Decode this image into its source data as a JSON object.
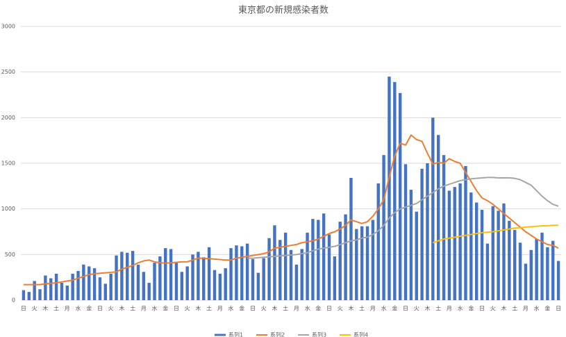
{
  "chart_data": {
    "type": "bar",
    "title": "東京都の新規感染者数",
    "categories": [
      "日",
      null,
      "火",
      null,
      "木",
      null,
      "土",
      null,
      "月",
      null,
      "水",
      null,
      "金",
      null,
      "日",
      null,
      "火",
      null,
      "木",
      null,
      "土",
      null,
      "月",
      null,
      "水",
      null,
      "金",
      null,
      "日",
      null,
      "火",
      null,
      "木",
      null,
      "土",
      null,
      "月",
      null,
      "水",
      null,
      "金",
      null,
      "日",
      null,
      "火",
      null,
      "木",
      null,
      "土",
      null,
      "月",
      null,
      "水",
      null,
      "金",
      null,
      "日",
      null,
      "火",
      null,
      "木",
      null,
      "土",
      null,
      "月",
      null,
      "水",
      null,
      "金",
      null,
      "日",
      null,
      "火",
      null,
      "木",
      null,
      "土",
      null,
      "月",
      null,
      "水",
      null,
      "金",
      null,
      "日",
      null,
      "火",
      null,
      "木",
      null,
      "土",
      null,
      "月",
      null,
      "水",
      null,
      "金",
      null,
      "日"
    ],
    "ylim": [
      0,
      3000
    ],
    "yticks": [
      0,
      500,
      1000,
      1500,
      2000,
      2500,
      3000
    ],
    "grid": true,
    "legend": "bottom",
    "series": [
      {
        "name": "系列1",
        "type": "bar",
        "color": "#4472c4",
        "values": [
          110,
          90,
          210,
          120,
          270,
          240,
          290,
          190,
          160,
          290,
          320,
          390,
          370,
          350,
          250,
          180,
          290,
          490,
          530,
          520,
          540,
          390,
          310,
          190,
          410,
          480,
          570,
          560,
          420,
          310,
          370,
          500,
          530,
          470,
          580,
          330,
          290,
          350,
          570,
          600,
          590,
          620,
          450,
          300,
          460,
          680,
          820,
          660,
          740,
          550,
          390,
          560,
          740,
          890,
          880,
          950,
          720,
          480,
          860,
          940,
          1340,
          780,
          810,
          810,
          880,
          1280,
          1590,
          2450,
          2390,
          2270,
          1490,
          1210,
          970,
          1440,
          1500,
          2000,
          1810,
          1590,
          1200,
          1240,
          1280,
          1470,
          1180,
          1070,
          990,
          620,
          1030,
          980,
          1060,
          870,
          770,
          630,
          400,
          550,
          670,
          740,
          580,
          650,
          430
        ]
      },
      {
        "name": "系列2",
        "type": "line",
        "color": "#ed7d31",
        "values": [
          170,
          170,
          170,
          170,
          180,
          185,
          190,
          200,
          210,
          220,
          240,
          260,
          280,
          290,
          295,
          300,
          305,
          310,
          340,
          360,
          380,
          410,
          430,
          440,
          420,
          410,
          405,
          410,
          415,
          420,
          420,
          440,
          460,
          460,
          455,
          450,
          445,
          440,
          440,
          460,
          470,
          480,
          490,
          500,
          510,
          530,
          570,
          580,
          590,
          600,
          610,
          630,
          640,
          650,
          670,
          700,
          730,
          750,
          780,
          820,
          880,
          860,
          840,
          860,
          920,
          1000,
          1100,
          1350,
          1580,
          1720,
          1700,
          1810,
          1760,
          1740,
          1610,
          1490,
          1510,
          1500,
          1550,
          1520,
          1500,
          1400,
          1300,
          1200,
          1120,
          1090,
          1050,
          1000,
          950,
          900,
          850,
          800,
          750,
          710,
          670,
          640,
          610,
          600,
          570
        ]
      },
      {
        "name": "系列3",
        "type": "line",
        "color": "#a5a5a5",
        "values": [
          null,
          null,
          null,
          null,
          null,
          null,
          null,
          null,
          null,
          null,
          null,
          null,
          null,
          null,
          null,
          null,
          null,
          null,
          null,
          null,
          null,
          null,
          null,
          null,
          null,
          null,
          null,
          null,
          null,
          null,
          null,
          null,
          null,
          null,
          null,
          null,
          null,
          null,
          null,
          null,
          null,
          460,
          460,
          465,
          470,
          475,
          480,
          485,
          490,
          495,
          500,
          510,
          520,
          540,
          560,
          570,
          580,
          590,
          610,
          630,
          650,
          660,
          680,
          690,
          720,
          760,
          820,
          900,
          960,
          1000,
          1020,
          1040,
          1060,
          1100,
          1140,
          1180,
          1220,
          1250,
          1270,
          1290,
          1310,
          1320,
          1330,
          1335,
          1340,
          1345,
          1345,
          1340,
          1340,
          1340,
          1335,
          1320,
          1290,
          1260,
          1200,
          1140,
          1090,
          1050,
          1030
        ]
      },
      {
        "name": "系列4",
        "type": "line",
        "color": "#ffc000",
        "values": [
          null,
          null,
          null,
          null,
          null,
          null,
          null,
          null,
          null,
          null,
          null,
          null,
          null,
          null,
          null,
          null,
          null,
          null,
          null,
          null,
          null,
          null,
          null,
          null,
          null,
          null,
          null,
          null,
          null,
          null,
          null,
          null,
          null,
          null,
          null,
          null,
          null,
          null,
          null,
          null,
          null,
          null,
          null,
          null,
          null,
          null,
          null,
          null,
          null,
          null,
          null,
          null,
          null,
          null,
          null,
          null,
          null,
          null,
          null,
          null,
          null,
          null,
          null,
          null,
          null,
          null,
          null,
          null,
          null,
          null,
          null,
          null,
          null,
          null,
          null,
          630,
          650,
          670,
          680,
          690,
          700,
          710,
          720,
          730,
          740,
          745,
          750,
          760,
          770,
          780,
          790,
          795,
          800,
          805,
          810,
          815,
          815,
          820,
          820
        ]
      }
    ]
  }
}
